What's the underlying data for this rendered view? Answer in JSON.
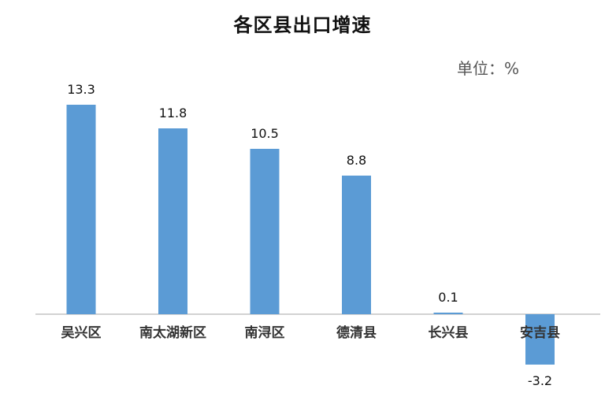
{
  "chart_data": {
    "type": "bar",
    "title": "各区县出口增速",
    "unit_label": "单位：%",
    "xlabel": "",
    "ylabel": "",
    "categories": [
      "吴兴区",
      "南太湖新区",
      "南浔区",
      "德清县",
      "长兴县",
      "安吉县"
    ],
    "values": [
      13.3,
      11.8,
      10.5,
      8.8,
      0.1,
      -3.2
    ],
    "data_labels": [
      "13.3",
      "11.8",
      "10.5",
      "8.8",
      "0.1",
      "-3.2"
    ],
    "ylim": [
      -3.2,
      13.3
    ],
    "grid": false,
    "legend": "none",
    "colors": {
      "bar": "#5B9BD5",
      "axis": "#A6A6A6"
    }
  }
}
